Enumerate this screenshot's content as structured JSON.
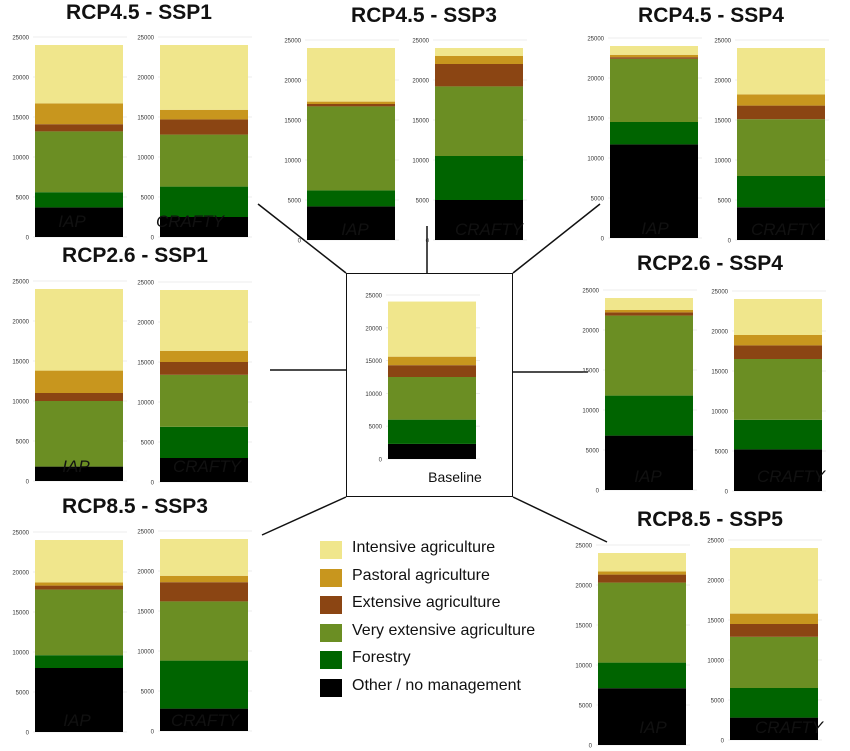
{
  "colors": {
    "Intensive agriculture": "#f0e68c",
    "Pastoral agriculture": "#c8961e",
    "Extensive agriculture": "#8b4513",
    "Very extensive agriculture": "#6b8e23",
    "Forestry": "#006400",
    "Other / no management": "#000000"
  },
  "legend": {
    "items": [
      "Intensive agriculture",
      "Pastoral agriculture",
      "Extensive agriculture",
      "Very extensive agriculture",
      "Forestry",
      "Other / no management"
    ]
  },
  "baseline": {
    "label": "Baseline"
  },
  "chart_data": {
    "type": "bar",
    "stacked": true,
    "series_order": [
      "Other / no management",
      "Forestry",
      "Very extensive agriculture",
      "Extensive agriculture",
      "Pastoral agriculture",
      "Intensive agriculture"
    ],
    "ylim": [
      0,
      25000
    ],
    "yticks": [
      0,
      5000,
      10000,
      15000,
      20000,
      25000
    ],
    "baseline": {
      "values": [
        2300,
        3700,
        6500,
        1800,
        1300,
        8400
      ]
    },
    "panels": [
      {
        "title": "RCP4.5 - SSP1",
        "models": [
          {
            "name": "IAP",
            "values": [
              3700,
              1900,
              7600,
              900,
              2600,
              7300
            ]
          },
          {
            "name": "CRAFTY",
            "values": [
              2500,
              3800,
              6500,
              1900,
              1200,
              8100
            ]
          }
        ]
      },
      {
        "title": "RCP4.5 - SSP3",
        "models": [
          {
            "name": "IAP",
            "values": [
              4200,
              2000,
              10500,
              300,
              300,
              6700
            ]
          },
          {
            "name": "CRAFTY",
            "values": [
              5000,
              5500,
              8700,
              2800,
              1000,
              1000
            ]
          }
        ]
      },
      {
        "title": "RCP4.5 - SSP4",
        "models": [
          {
            "name": "IAP",
            "values": [
              11700,
              2800,
              7900,
              200,
              300,
              1100
            ]
          },
          {
            "name": "CRAFTY",
            "values": [
              4100,
              3900,
              7100,
              1700,
              1400,
              5800
            ]
          }
        ]
      },
      {
        "title": "RCP2.6 - SSP1",
        "models": [
          {
            "name": "IAP",
            "values": [
              1800,
              0,
              8200,
              1000,
              2800,
              10200
            ]
          },
          {
            "name": "CRAFTY",
            "values": [
              3000,
              3900,
              6500,
              1600,
              1400,
              7600
            ]
          }
        ]
      },
      {
        "title": "RCP2.6 - SSP4",
        "models": [
          {
            "name": "IAP",
            "values": [
              6800,
              5000,
              10000,
              400,
              300,
              1500
            ]
          },
          {
            "name": "CRAFTY",
            "values": [
              5200,
              3700,
              7600,
              1700,
              1300,
              4500
            ]
          }
        ]
      },
      {
        "title": "RCP8.5 - SSP3",
        "models": [
          {
            "name": "IAP",
            "values": [
              8000,
              1600,
              8200,
              500,
              400,
              5300
            ]
          },
          {
            "name": "CRAFTY",
            "values": [
              2800,
              6000,
              7400,
              2400,
              800,
              4600
            ]
          }
        ]
      },
      {
        "title": "RCP8.5 - SSP5",
        "models": [
          {
            "name": "IAP",
            "values": [
              7100,
              3200,
              10000,
              1000,
              400,
              2300
            ]
          },
          {
            "name": "CRAFTY",
            "values": [
              2800,
              3700,
              6400,
              1600,
              1300,
              8200
            ]
          }
        ]
      }
    ]
  }
}
